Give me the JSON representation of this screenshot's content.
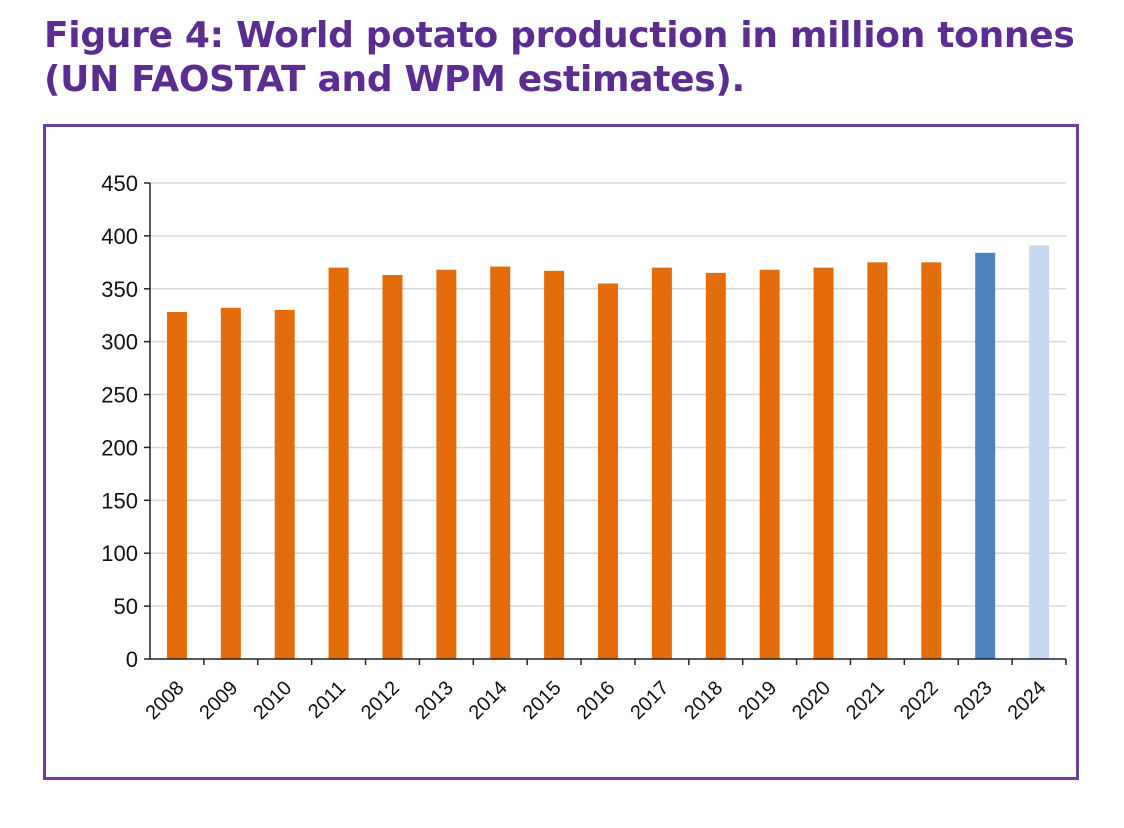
{
  "title": {
    "line1": "Figure 4: World potato production in million tonnes",
    "line2": "(UN FAOSTAT and WPM estimates)."
  },
  "chart_data": {
    "type": "bar",
    "title": "Figure 4: World potato production in million tonnes (UN FAOSTAT and WPM estimates).",
    "xlabel": "",
    "ylabel": "",
    "ylim": [
      0,
      450
    ],
    "yticks": [
      0,
      50,
      100,
      150,
      200,
      250,
      300,
      350,
      400,
      450
    ],
    "grid": true,
    "categories": [
      "2008",
      "2009",
      "2010",
      "2011",
      "2012",
      "2013",
      "2014",
      "2015",
      "2016",
      "2017",
      "2018",
      "2019",
      "2020",
      "2021",
      "2022",
      "2023",
      "2024"
    ],
    "values": [
      328,
      332,
      330,
      370,
      363,
      368,
      371,
      367,
      355,
      370,
      365,
      368,
      370,
      375,
      375,
      384,
      391
    ],
    "colors": [
      "#e46c0a",
      "#e46c0a",
      "#e46c0a",
      "#e46c0a",
      "#e46c0a",
      "#e46c0a",
      "#e46c0a",
      "#e46c0a",
      "#e46c0a",
      "#e46c0a",
      "#e46c0a",
      "#e46c0a",
      "#e46c0a",
      "#e46c0a",
      "#e46c0a",
      "#4f81bd",
      "#c6d9f1"
    ]
  },
  "colors": {
    "title": "#5b2d90",
    "frame": "#6a3fa0",
    "gridline": "#d9d9d9"
  }
}
